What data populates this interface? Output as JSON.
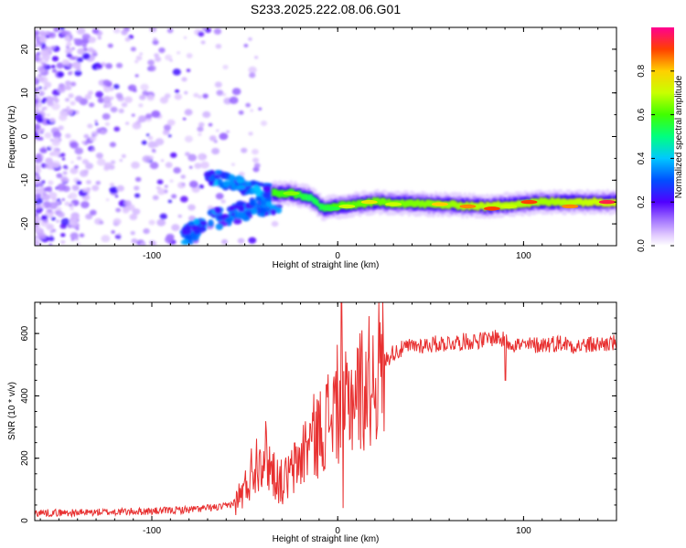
{
  "title": "S233.2025.222.08.06.G01",
  "chart_data": [
    {
      "type": "heatmap",
      "xlabel": "Height of straight line (km)",
      "ylabel": "Frequency (Hz)",
      "xlim": [
        -163,
        150
      ],
      "ylim": [
        -25,
        25
      ],
      "xticks": [
        -100,
        0,
        100
      ],
      "yticks": [
        -20,
        -10,
        0,
        10,
        20
      ],
      "colorbar": {
        "label": "Normalized spectral amplitude",
        "range": [
          0,
          1
        ],
        "ticks": [
          "0.0",
          "0.2",
          "0.4",
          "0.6",
          "0.8"
        ],
        "tick_values": [
          0,
          0.2,
          0.4,
          0.6,
          0.8
        ]
      },
      "ridge": [
        {
          "x": -25,
          "y": -13,
          "amp": 0.6
        },
        {
          "x": -15,
          "y": -14,
          "amp": 0.45
        },
        {
          "x": -8,
          "y": -16.5,
          "amp": 0.5
        },
        {
          "x": 0,
          "y": -16,
          "amp": 0.65
        },
        {
          "x": 20,
          "y": -15,
          "amp": 0.7
        },
        {
          "x": 50,
          "y": -15.5,
          "amp": 0.75
        },
        {
          "x": 80,
          "y": -16,
          "amp": 0.85
        },
        {
          "x": 110,
          "y": -15,
          "amp": 0.8
        },
        {
          "x": 145,
          "y": -15,
          "amp": 0.9
        }
      ]
    },
    {
      "type": "line",
      "xlabel": "Height of straight line (km)",
      "ylabel": "SNR (10 * v/v)",
      "xlim": [
        -163,
        150
      ],
      "ylim": [
        0,
        700
      ],
      "xticks": [
        -100,
        0,
        100
      ],
      "yticks": [
        0,
        200,
        400,
        600
      ],
      "series": [
        {
          "name": "SNR",
          "color": "#e83030",
          "x": [
            -163,
            -140,
            -120,
            -100,
            -80,
            -70,
            -60,
            -55,
            -50,
            -45,
            -40,
            -35,
            -30,
            -25,
            -20,
            -15,
            -10,
            -5,
            0,
            2,
            5,
            10,
            15,
            20,
            25,
            30,
            40,
            50,
            60,
            70,
            80,
            85,
            90,
            100,
            110,
            120,
            130,
            140,
            150
          ],
          "y": [
            25,
            25,
            28,
            30,
            35,
            40,
            45,
            60,
            100,
            180,
            230,
            160,
            120,
            150,
            200,
            260,
            280,
            330,
            380,
            300,
            380,
            420,
            430,
            470,
            510,
            540,
            560,
            565,
            570,
            575,
            580,
            590,
            575,
            560,
            565,
            570,
            560,
            565,
            570
          ]
        }
      ]
    }
  ]
}
